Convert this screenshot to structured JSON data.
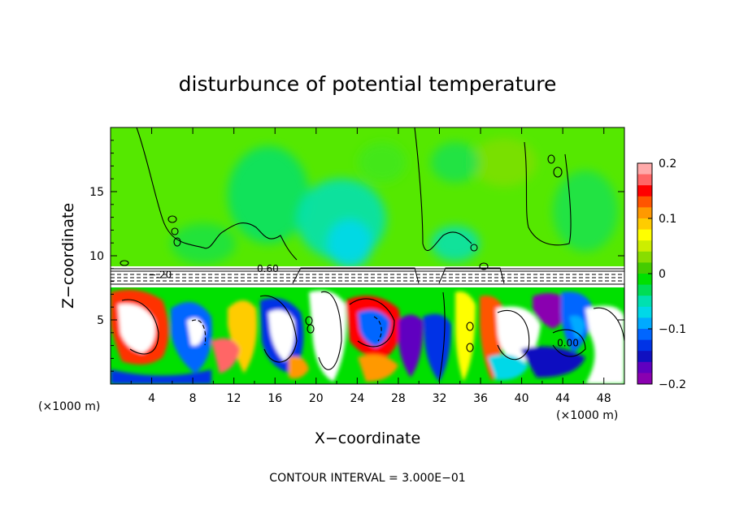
{
  "chart_data": {
    "type": "heatmap",
    "title": "disturbunce of potential temperature",
    "xlabel": "X−coordinate",
    "ylabel": "Z−coordinate",
    "x_unit_left": "(×1000 m)",
    "x_unit_right": "(×1000 m)",
    "footer": "CONTOUR INTERVAL = 3.000E−01",
    "xlim": [
      0,
      50
    ],
    "ylim": [
      0,
      20
    ],
    "xticks": [
      "4",
      "8",
      "12",
      "16",
      "20",
      "24",
      "28",
      "32",
      "36",
      "40",
      "44",
      "48"
    ],
    "xtick_values": [
      4,
      8,
      12,
      16,
      20,
      24,
      28,
      32,
      36,
      40,
      44,
      48
    ],
    "yticks": [
      "5",
      "10",
      "15"
    ],
    "ytick_values": [
      5,
      10,
      15
    ],
    "contour_labels": [
      {
        "text": "−.20",
        "x": 4.8,
        "y": 8.5
      },
      {
        "text": "0.60",
        "x": 15.3,
        "y": 9.0
      },
      {
        "text": "0.00",
        "x": 44.5,
        "y": 3.2
      }
    ],
    "colorbar": {
      "min": -0.2,
      "max": 0.2,
      "tick_labels": [
        "0.2",
        "0.1",
        "0",
        "−0.1",
        "−0.2"
      ],
      "tick_values": [
        0.2,
        0.1,
        0,
        -0.1,
        -0.2
      ],
      "colors": [
        "#ffaaaa",
        "#ff6666",
        "#ff0000",
        "#ff5500",
        "#ff9900",
        "#ffcc00",
        "#ffff00",
        "#ccee00",
        "#88dd00",
        "#44cc00",
        "#00e000",
        "#00dd55",
        "#00e0b0",
        "#00d8e8",
        "#00aaff",
        "#0066ff",
        "#0033e6",
        "#1010c0",
        "#6000c0",
        "#8a00b0"
      ]
    }
  }
}
